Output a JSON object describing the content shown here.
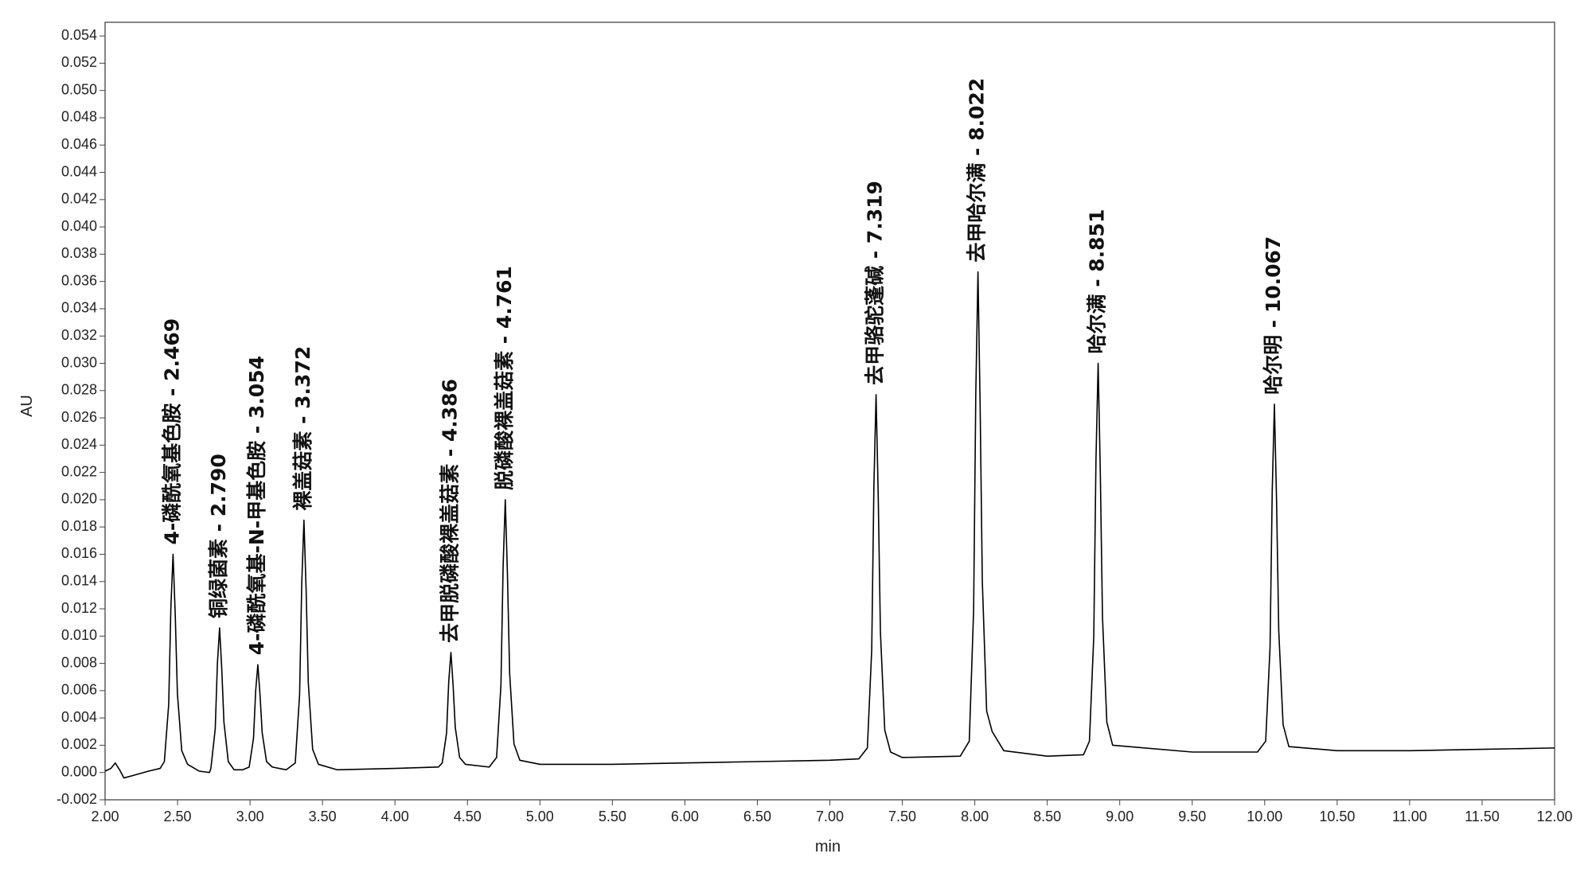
{
  "chart_data": {
    "type": "line",
    "xlabel": "min",
    "ylabel": "AU",
    "xlim": [
      2,
      12
    ],
    "ylim": [
      -0.002,
      0.055
    ],
    "xticks": [
      {
        "value": 2,
        "label": "2.00"
      },
      {
        "value": 2.5,
        "label": "2.50"
      },
      {
        "value": 3,
        "label": "3.00"
      },
      {
        "value": 3.5,
        "label": "3.50"
      },
      {
        "value": 4,
        "label": "4.00"
      },
      {
        "value": 4.5,
        "label": "4.50"
      },
      {
        "value": 5,
        "label": "5.00"
      },
      {
        "value": 5.5,
        "label": "5.50"
      },
      {
        "value": 6,
        "label": "6.00"
      },
      {
        "value": 6.5,
        "label": "6.50"
      },
      {
        "value": 7,
        "label": "7.00"
      },
      {
        "value": 7.5,
        "label": "7.50"
      },
      {
        "value": 8,
        "label": "8.00"
      },
      {
        "value": 8.5,
        "label": "8.50"
      },
      {
        "value": 9,
        "label": "9.00"
      },
      {
        "value": 9.5,
        "label": "9.50"
      },
      {
        "value": 10,
        "label": "10.00"
      },
      {
        "value": 10.5,
        "label": "10.50"
      },
      {
        "value": 11,
        "label": "11.00"
      },
      {
        "value": 11.5,
        "label": "11.50"
      },
      {
        "value": 12,
        "label": "12.00"
      }
    ],
    "yticks": [
      {
        "value": -0.002,
        "label": "-0.002"
      },
      {
        "value": 0,
        "label": "0.000"
      },
      {
        "value": 0.002,
        "label": "0.002"
      },
      {
        "value": 0.004,
        "label": "0.004"
      },
      {
        "value": 0.006,
        "label": "0.006"
      },
      {
        "value": 0.008,
        "label": "0.008"
      },
      {
        "value": 0.01,
        "label": "0.010"
      },
      {
        "value": 0.012,
        "label": "0.012"
      },
      {
        "value": 0.014,
        "label": "0.014"
      },
      {
        "value": 0.016,
        "label": "0.016"
      },
      {
        "value": 0.018,
        "label": "0.018"
      },
      {
        "value": 0.02,
        "label": "0.020"
      },
      {
        "value": 0.022,
        "label": "0.022"
      },
      {
        "value": 0.024,
        "label": "0.024"
      },
      {
        "value": 0.026,
        "label": "0.026"
      },
      {
        "value": 0.028,
        "label": "0.028"
      },
      {
        "value": 0.03,
        "label": "0.030"
      },
      {
        "value": 0.032,
        "label": "0.032"
      },
      {
        "value": 0.034,
        "label": "0.034"
      },
      {
        "value": 0.036,
        "label": "0.036"
      },
      {
        "value": 0.038,
        "label": "0.038"
      },
      {
        "value": 0.04,
        "label": "0.040"
      },
      {
        "value": 0.042,
        "label": "0.042"
      },
      {
        "value": 0.044,
        "label": "0.044"
      },
      {
        "value": 0.046,
        "label": "0.046"
      },
      {
        "value": 0.048,
        "label": "0.048"
      },
      {
        "value": 0.05,
        "label": "0.050"
      },
      {
        "value": 0.052,
        "label": "0.052"
      },
      {
        "value": 0.054,
        "label": "0.054"
      }
    ],
    "x": [
      2.0,
      2.04,
      2.07,
      2.1,
      2.13,
      2.2,
      2.3,
      2.38,
      2.409,
      2.439,
      2.454,
      2.469,
      2.484,
      2.499,
      2.529,
      2.569,
      2.65,
      2.72,
      2.73,
      2.76,
      2.775,
      2.79,
      2.805,
      2.82,
      2.85,
      2.89,
      2.95,
      2.994,
      3.024,
      3.039,
      3.054,
      3.069,
      3.084,
      3.114,
      3.154,
      3.25,
      3.312,
      3.342,
      3.357,
      3.372,
      3.387,
      3.402,
      3.432,
      3.472,
      3.6,
      4.0,
      4.3,
      4.326,
      4.356,
      4.371,
      4.386,
      4.401,
      4.416,
      4.446,
      4.486,
      4.65,
      4.701,
      4.731,
      4.746,
      4.761,
      4.776,
      4.791,
      4.821,
      4.861,
      5.0,
      5.5,
      6.0,
      6.5,
      7.0,
      7.2,
      7.259,
      7.289,
      7.304,
      7.319,
      7.334,
      7.349,
      7.379,
      7.419,
      7.5,
      7.9,
      7.962,
      7.992,
      8.007,
      8.022,
      8.037,
      8.052,
      8.082,
      8.12,
      8.2,
      8.5,
      8.75,
      8.791,
      8.821,
      8.836,
      8.851,
      8.866,
      8.881,
      8.911,
      8.951,
      9.5,
      9.95,
      10.007,
      10.037,
      10.052,
      10.067,
      10.082,
      10.097,
      10.127,
      10.167,
      10.5,
      11.0,
      11.5,
      12.0
    ],
    "series": [
      {
        "color": "#000000",
        "values": [
          0.0001,
          0.0003,
          0.0007,
          0.0002,
          -0.0004,
          -0.0002,
          0.0001,
          0.0003,
          0.0008,
          0.005,
          0.0121,
          0.016,
          0.0116,
          0.0058,
          0.0016,
          0.0006,
          0.0001,
          0.0,
          0.0003,
          0.0032,
          0.008,
          0.0106,
          0.0076,
          0.0037,
          0.0008,
          0.0002,
          0.0002,
          0.0004,
          0.0025,
          0.006,
          0.0079,
          0.0057,
          0.0029,
          0.0008,
          0.0004,
          0.0002,
          0.0007,
          0.0057,
          0.0139,
          0.0185,
          0.0134,
          0.0066,
          0.0017,
          0.0006,
          0.0002,
          0.0003,
          0.0004,
          0.0007,
          0.0029,
          0.0067,
          0.0088,
          0.0064,
          0.0033,
          0.0011,
          0.0006,
          0.0004,
          0.0011,
          0.0064,
          0.0151,
          0.02,
          0.0145,
          0.0073,
          0.0021,
          0.0009,
          0.0006,
          0.0006,
          0.0007,
          0.0008,
          0.0009,
          0.001,
          0.0018,
          0.009,
          0.021,
          0.0277,
          0.0202,
          0.0103,
          0.0031,
          0.0015,
          0.0011,
          0.0012,
          0.0023,
          0.0119,
          0.0278,
          0.0367,
          0.0268,
          0.014,
          0.0045,
          0.003,
          0.0016,
          0.0012,
          0.0013,
          0.0023,
          0.01,
          0.0229,
          0.03,
          0.022,
          0.0114,
          0.0037,
          0.002,
          0.0015,
          0.0015,
          0.0023,
          0.0092,
          0.0206,
          0.027,
          0.0199,
          0.0104,
          0.0035,
          0.0019,
          0.0016,
          0.0016,
          0.0017,
          0.0018
        ]
      }
    ],
    "annotations": [
      {
        "text": "4-磷酰氧基色胺 - 2.469",
        "x": 2.469
      },
      {
        "text": "铜绿菌素 - 2.790",
        "x": 2.79
      },
      {
        "text": "4-磷酰氧基-N-甲基色胺 - 3.054",
        "x": 3.054
      },
      {
        "text": "裸盖菇素 - 3.372",
        "x": 3.372
      },
      {
        "text": "去甲脱磷酸裸盖菇素 - 4.386",
        "x": 4.386
      },
      {
        "text": "脱磷酸裸盖菇素 - 4.761",
        "x": 4.761
      },
      {
        "text": "去甲骆驼蓬碱 - 7.319",
        "x": 7.319
      },
      {
        "text": "去甲哈尔满 - 8.022",
        "x": 8.022
      },
      {
        "text": "哈尔满 - 8.851",
        "x": 8.851
      },
      {
        "text": "哈尔明 - 10.067",
        "x": 10.067
      }
    ]
  }
}
